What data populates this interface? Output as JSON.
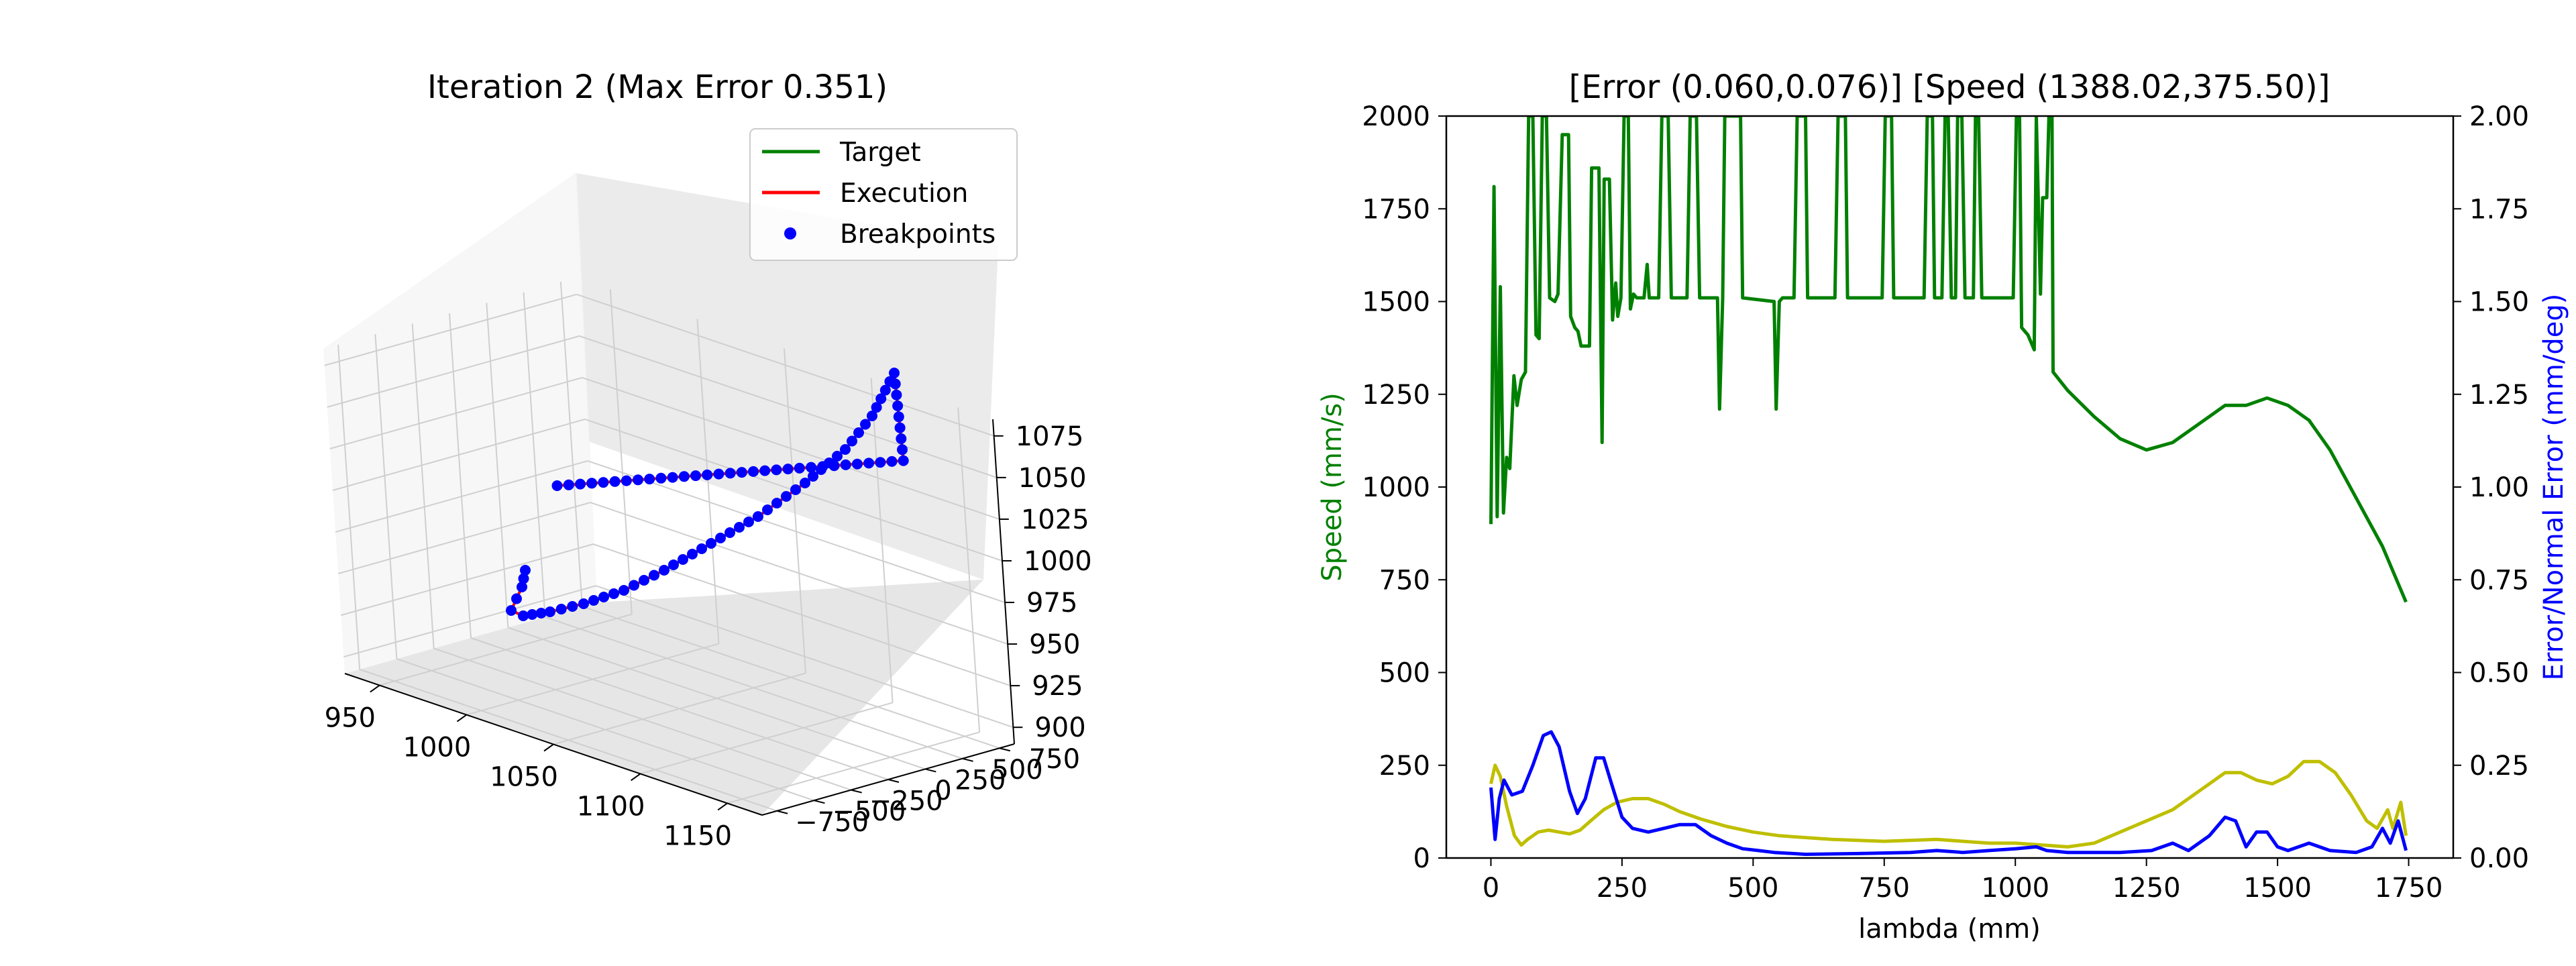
{
  "chart_data": [
    {
      "type": "line3d",
      "title": "Iteration 2 (Max Error 0.351)",
      "legend": {
        "placement": "top-right",
        "entries": [
          {
            "label": "Target",
            "color": "#008000",
            "style": "line"
          },
          {
            "label": "Execution",
            "color": "#ff0000",
            "style": "line"
          },
          {
            "label": "Breakpoints",
            "color": "#0000ff",
            "style": "point"
          }
        ]
      },
      "x_ticks": [
        "950",
        "1000",
        "1050",
        "1100",
        "1150"
      ],
      "y_ticks": [
        "750",
        "500",
        "250",
        "0",
        "−250",
        "−500",
        "−750"
      ],
      "z_ticks": [
        "1075",
        "1050",
        "1025",
        "1000",
        "975",
        "950",
        "925",
        "900"
      ],
      "xlim": [
        930,
        1170
      ],
      "ylim": [
        -850,
        850
      ],
      "zlim": [
        890,
        1085
      ],
      "grid": true,
      "path_start": [
        1000,
        -150,
        1010
      ],
      "path_end": [
        1130,
        690,
        1050
      ]
    },
    {
      "type": "line",
      "title": "[Error (0.060,0.076)] [Speed (1388.02,375.50)]",
      "xlabel": "lambda (mm)",
      "ylabel": "Speed (mm/s)",
      "ylabel_right": "Error/Normal Error (mm/deg)",
      "xlim": [
        -85,
        1835
      ],
      "ylim": [
        0,
        2000
      ],
      "ylim_right": [
        0,
        2.0
      ],
      "x_ticks": [
        "0",
        "250",
        "500",
        "750",
        "1000",
        "1250",
        "1500",
        "1750"
      ],
      "y_ticks": [
        "0",
        "250",
        "500",
        "750",
        "1000",
        "1250",
        "1500",
        "1750",
        "2000"
      ],
      "y_ticks_right": [
        "0.00",
        "0.25",
        "0.50",
        "0.75",
        "1.00",
        "1.25",
        "1.50",
        "1.75",
        "2.00"
      ],
      "grid": false,
      "series": [
        {
          "axis": "left",
          "color": "#008000",
          "points": [
            [
              0,
              900
            ],
            [
              6,
              1810
            ],
            [
              12,
              920
            ],
            [
              18,
              1540
            ],
            [
              24,
              930
            ],
            [
              30,
              1080
            ],
            [
              36,
              1050
            ],
            [
              44,
              1300
            ],
            [
              50,
              1220
            ],
            [
              58,
              1290
            ],
            [
              66,
              1310
            ],
            [
              72,
              2000
            ],
            [
              80,
              2000
            ],
            [
              86,
              1410
            ],
            [
              92,
              1400
            ],
            [
              98,
              2000
            ],
            [
              106,
              2000
            ],
            [
              112,
              1510
            ],
            [
              122,
              1500
            ],
            [
              128,
              1520
            ],
            [
              136,
              1950
            ],
            [
              148,
              1950
            ],
            [
              152,
              1460
            ],
            [
              160,
              1430
            ],
            [
              166,
              1420
            ],
            [
              172,
              1380
            ],
            [
              188,
              1380
            ],
            [
              192,
              1860
            ],
            [
              206,
              1860
            ],
            [
              212,
              1120
            ],
            [
              216,
              1830
            ],
            [
              226,
              1830
            ],
            [
              232,
              1450
            ],
            [
              238,
              1550
            ],
            [
              242,
              1460
            ],
            [
              248,
              1510
            ],
            [
              254,
              2000
            ],
            [
              262,
              2000
            ],
            [
              266,
              1480
            ],
            [
              272,
              1520
            ],
            [
              278,
              1510
            ],
            [
              292,
              1510
            ],
            [
              298,
              1600
            ],
            [
              302,
              1510
            ],
            [
              320,
              1510
            ],
            [
              326,
              2000
            ],
            [
              338,
              2000
            ],
            [
              344,
              1510
            ],
            [
              374,
              1510
            ],
            [
              380,
              2000
            ],
            [
              392,
              2000
            ],
            [
              398,
              1510
            ],
            [
              426,
              1510
            ],
            [
              432,
              1510
            ],
            [
              436,
              1210
            ],
            [
              442,
              1510
            ],
            [
              446,
              2000
            ],
            [
              476,
              2000
            ],
            [
              480,
              1510
            ],
            [
              540,
              1500
            ],
            [
              544,
              1210
            ],
            [
              550,
              1500
            ],
            [
              556,
              1510
            ],
            [
              578,
              1510
            ],
            [
              584,
              2000
            ],
            [
              600,
              2000
            ],
            [
              604,
              1510
            ],
            [
              656,
              1510
            ],
            [
              662,
              2000
            ],
            [
              676,
              2000
            ],
            [
              680,
              1510
            ],
            [
              746,
              1510
            ],
            [
              752,
              2000
            ],
            [
              764,
              2000
            ],
            [
              768,
              1510
            ],
            [
              826,
              1510
            ],
            [
              832,
              2000
            ],
            [
              842,
              2000
            ],
            [
              846,
              1510
            ],
            [
              860,
              1510
            ],
            [
              866,
              2000
            ],
            [
              872,
              2000
            ],
            [
              878,
              1510
            ],
            [
              886,
              1510
            ],
            [
              890,
              2000
            ],
            [
              898,
              2000
            ],
            [
              904,
              1510
            ],
            [
              920,
              1510
            ],
            [
              924,
              2000
            ],
            [
              930,
              2000
            ],
            [
              936,
              1510
            ],
            [
              996,
              1510
            ],
            [
              1002,
              2000
            ],
            [
              1008,
              2000
            ],
            [
              1012,
              1430
            ],
            [
              1024,
              1410
            ],
            [
              1036,
              1370
            ],
            [
              1040,
              2000
            ],
            [
              1048,
              1520
            ],
            [
              1052,
              1780
            ],
            [
              1060,
              1780
            ],
            [
              1064,
              2000
            ],
            [
              1070,
              2000
            ],
            [
              1072,
              1310
            ],
            [
              1100,
              1260
            ],
            [
              1150,
              1190
            ],
            [
              1200,
              1130
            ],
            [
              1250,
              1100
            ],
            [
              1300,
              1120
            ],
            [
              1350,
              1170
            ],
            [
              1400,
              1220
            ],
            [
              1440,
              1220
            ],
            [
              1480,
              1240
            ],
            [
              1520,
              1220
            ],
            [
              1560,
              1180
            ],
            [
              1600,
              1100
            ],
            [
              1650,
              970
            ],
            [
              1700,
              840
            ],
            [
              1730,
              740
            ],
            [
              1745,
              690
            ]
          ]
        },
        {
          "axis": "right",
          "color": "#bfbf00",
          "points": [
            [
              0,
              0.2
            ],
            [
              8,
              0.25
            ],
            [
              18,
              0.22
            ],
            [
              30,
              0.14
            ],
            [
              45,
              0.06
            ],
            [
              58,
              0.035
            ],
            [
              70,
              0.05
            ],
            [
              90,
              0.07
            ],
            [
              110,
              0.075
            ],
            [
              130,
              0.07
            ],
            [
              150,
              0.065
            ],
            [
              170,
              0.075
            ],
            [
              190,
              0.1
            ],
            [
              215,
              0.13
            ],
            [
              240,
              0.15
            ],
            [
              270,
              0.16
            ],
            [
              300,
              0.16
            ],
            [
              330,
              0.145
            ],
            [
              360,
              0.125
            ],
            [
              400,
              0.105
            ],
            [
              450,
              0.085
            ],
            [
              500,
              0.07
            ],
            [
              550,
              0.06
            ],
            [
              650,
              0.05
            ],
            [
              750,
              0.045
            ],
            [
              850,
              0.05
            ],
            [
              950,
              0.04
            ],
            [
              1000,
              0.04
            ],
            [
              1050,
              0.035
            ],
            [
              1100,
              0.03
            ],
            [
              1150,
              0.04
            ],
            [
              1200,
              0.07
            ],
            [
              1250,
              0.1
            ],
            [
              1300,
              0.13
            ],
            [
              1350,
              0.18
            ],
            [
              1400,
              0.23
            ],
            [
              1430,
              0.23
            ],
            [
              1460,
              0.21
            ],
            [
              1490,
              0.2
            ],
            [
              1520,
              0.22
            ],
            [
              1550,
              0.26
            ],
            [
              1580,
              0.26
            ],
            [
              1610,
              0.23
            ],
            [
              1640,
              0.17
            ],
            [
              1670,
              0.1
            ],
            [
              1690,
              0.08
            ],
            [
              1710,
              0.13
            ],
            [
              1720,
              0.08
            ],
            [
              1735,
              0.15
            ],
            [
              1745,
              0.06
            ]
          ]
        },
        {
          "axis": "right",
          "color": "#0000ff",
          "points": [
            [
              0,
              0.19
            ],
            [
              8,
              0.05
            ],
            [
              16,
              0.16
            ],
            [
              25,
              0.21
            ],
            [
              40,
              0.17
            ],
            [
              60,
              0.18
            ],
            [
              80,
              0.25
            ],
            [
              100,
              0.33
            ],
            [
              115,
              0.34
            ],
            [
              130,
              0.3
            ],
            [
              150,
              0.18
            ],
            [
              165,
              0.12
            ],
            [
              180,
              0.16
            ],
            [
              200,
              0.27
            ],
            [
              215,
              0.27
            ],
            [
              230,
              0.2
            ],
            [
              250,
              0.11
            ],
            [
              270,
              0.08
            ],
            [
              300,
              0.07
            ],
            [
              330,
              0.08
            ],
            [
              360,
              0.09
            ],
            [
              390,
              0.09
            ],
            [
              420,
              0.06
            ],
            [
              450,
              0.04
            ],
            [
              480,
              0.025
            ],
            [
              510,
              0.02
            ],
            [
              540,
              0.015
            ],
            [
              600,
              0.01
            ],
            [
              700,
              0.012
            ],
            [
              800,
              0.015
            ],
            [
              850,
              0.02
            ],
            [
              900,
              0.015
            ],
            [
              950,
              0.02
            ],
            [
              1000,
              0.025
            ],
            [
              1040,
              0.03
            ],
            [
              1060,
              0.02
            ],
            [
              1100,
              0.015
            ],
            [
              1200,
              0.015
            ],
            [
              1260,
              0.02
            ],
            [
              1300,
              0.04
            ],
            [
              1330,
              0.02
            ],
            [
              1370,
              0.06
            ],
            [
              1400,
              0.11
            ],
            [
              1420,
              0.1
            ],
            [
              1440,
              0.03
            ],
            [
              1460,
              0.07
            ],
            [
              1480,
              0.07
            ],
            [
              1500,
              0.03
            ],
            [
              1520,
              0.02
            ],
            [
              1560,
              0.04
            ],
            [
              1600,
              0.02
            ],
            [
              1650,
              0.015
            ],
            [
              1680,
              0.03
            ],
            [
              1700,
              0.08
            ],
            [
              1715,
              0.04
            ],
            [
              1730,
              0.1
            ],
            [
              1745,
              0.02
            ]
          ]
        }
      ]
    }
  ]
}
